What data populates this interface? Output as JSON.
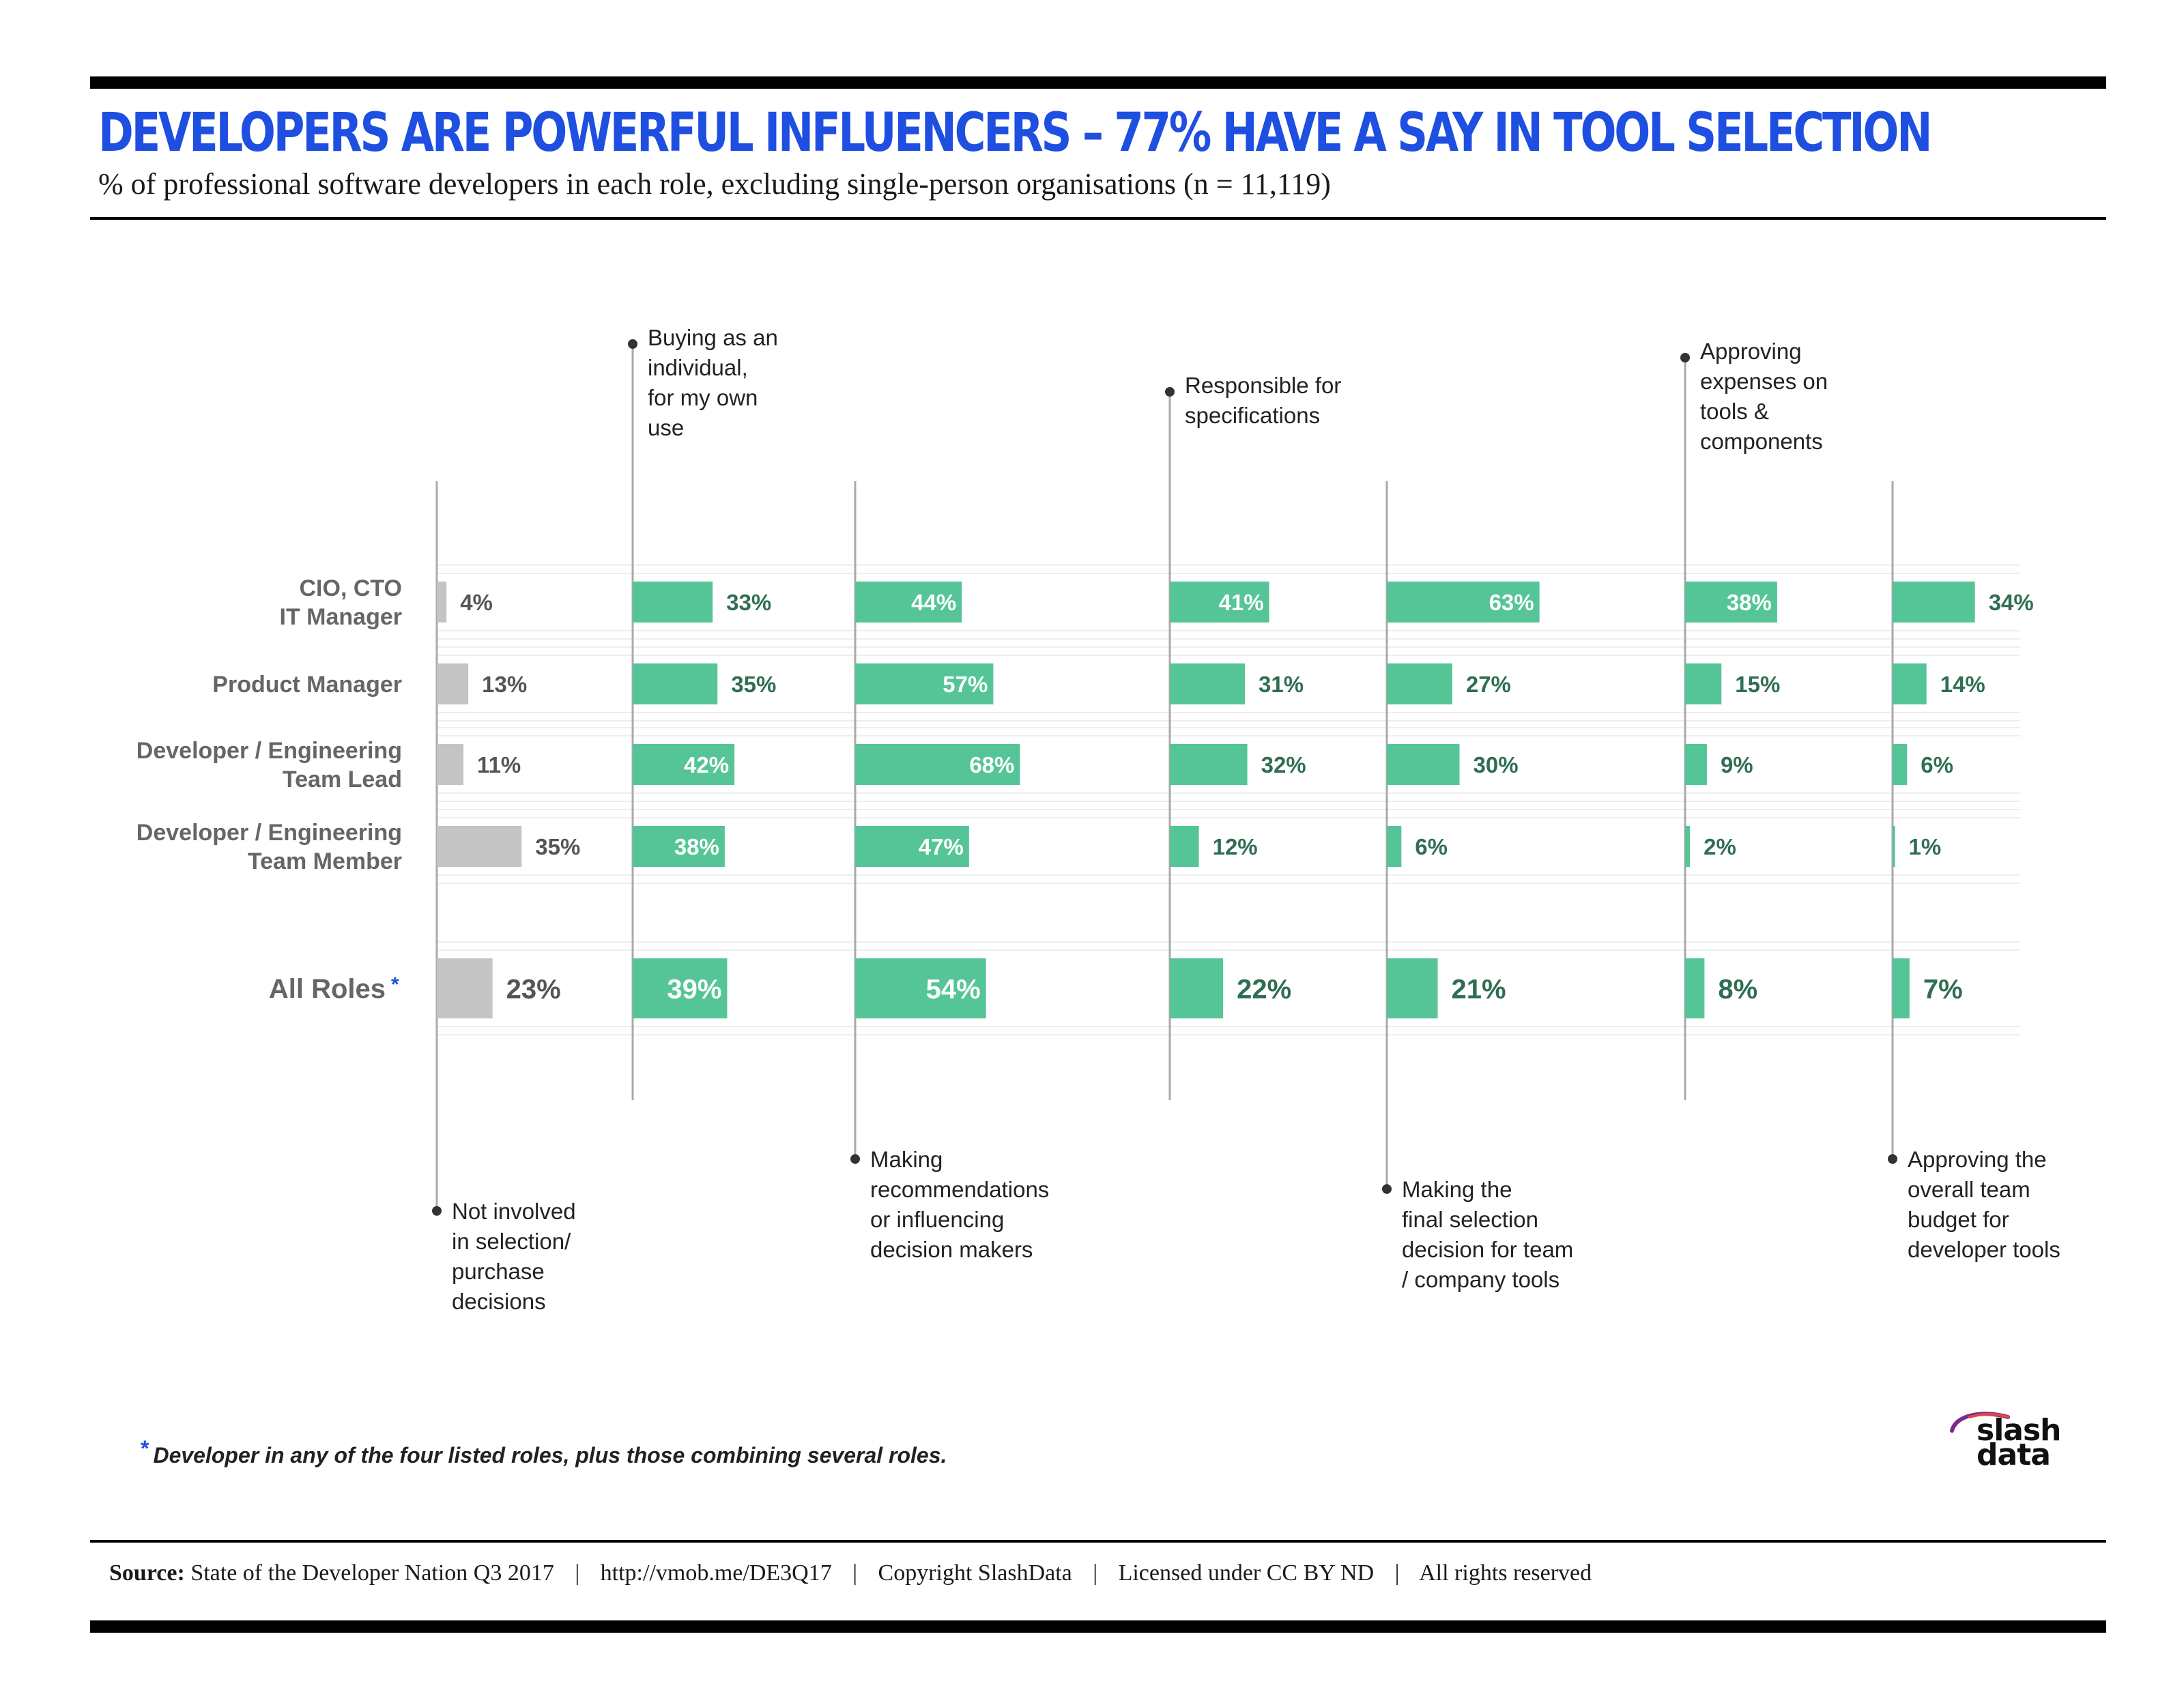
{
  "title": "DEVELOPERS ARE POWERFUL INFLUENCERS – 77% HAVE A SAY IN TOOL SELECTION",
  "subtitle": "% of professional software developers in each role, excluding single-person organisations (n = 11,119)",
  "colors": {
    "title": "#1e4fe0",
    "bar_green": "#55c597",
    "bar_grey": "#c4c4c4",
    "label_dark": "#2f6e52",
    "row_label": "#666666"
  },
  "chart_data": {
    "type": "bar",
    "rows": [
      "CIO, CTO\nIT Manager",
      "Product Manager",
      "Developer /  Engineering\nTeam Lead",
      "Developer /  Engineering\nTeam Member",
      "All Roles"
    ],
    "summary_row_marker": "*",
    "series": [
      {
        "name": "Not involved\nin selection/\npurchase\ndecisions",
        "values": [
          4,
          13,
          11,
          35,
          23
        ]
      },
      {
        "name": "Buying as an\nindividual,\nfor my own\nuse",
        "values": [
          33,
          35,
          42,
          38,
          39
        ]
      },
      {
        "name": "Making\nrecommendations\nor influencing\ndecision makers",
        "values": [
          44,
          57,
          68,
          47,
          54
        ]
      },
      {
        "name": "Responsible for\nspecifications",
        "values": [
          41,
          31,
          32,
          12,
          22
        ]
      },
      {
        "name": "Making the\nfinal selection\ndecision for team\n/ company tools",
        "values": [
          63,
          27,
          30,
          6,
          21
        ]
      },
      {
        "name": "Approving\nexpenses on\ntools &\ncomponents",
        "values": [
          38,
          15,
          9,
          2,
          8
        ]
      },
      {
        "name": "Approving the\noverall team\nbudget for\ndeveloper tools",
        "values": [
          34,
          14,
          6,
          1,
          7
        ]
      }
    ],
    "value_format": "{v}%"
  },
  "footnote": {
    "marker": "*",
    "text": "Developer in any of the four listed roles, plus those combining several roles."
  },
  "source": {
    "label": "Source:",
    "parts": [
      "State of the Developer Nation Q3 2017",
      "http://vmob.me/DE3Q17",
      "Copyright SlashData",
      "Licensed under CC BY ND",
      "All rights reserved"
    ],
    "separator": "|"
  },
  "logo": {
    "line1": "slash",
    "line2": "data"
  }
}
